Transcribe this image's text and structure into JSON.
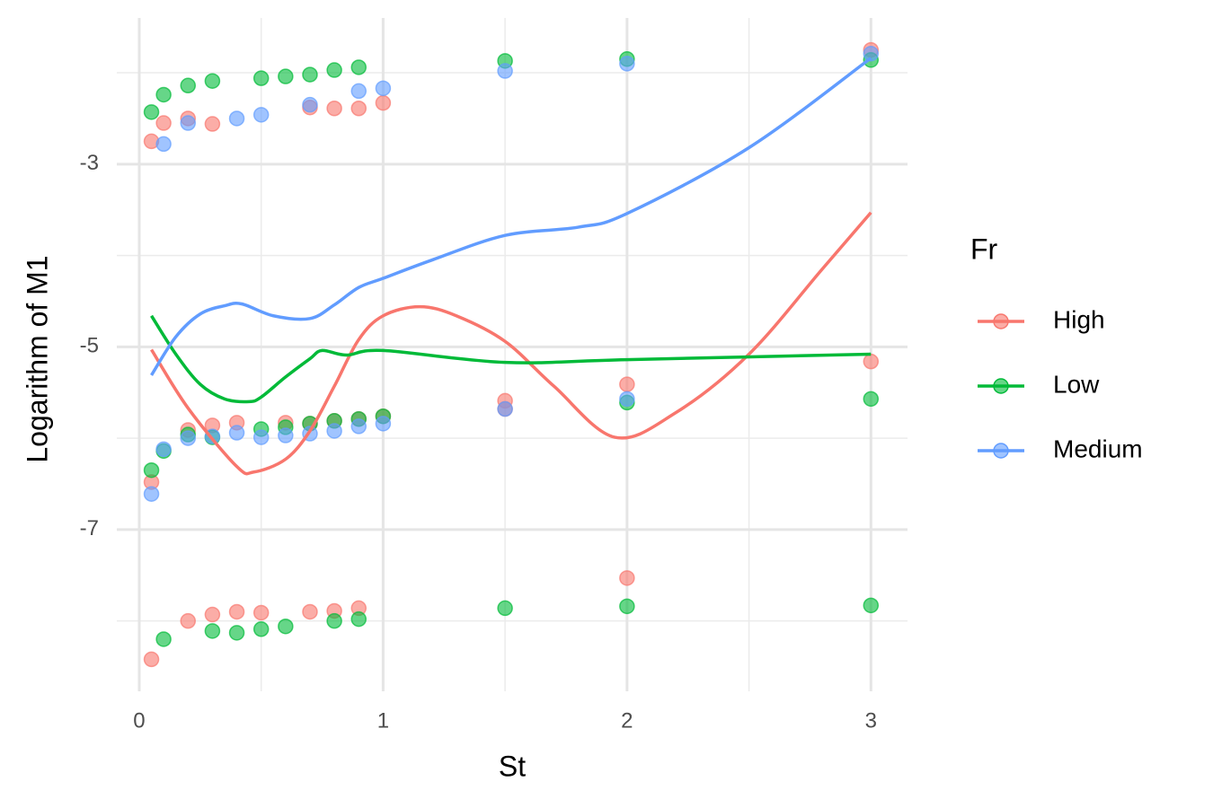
{
  "chart_data": {
    "type": "scatter",
    "x_label": "St",
    "y_label": "Logarithm of M1",
    "legend_title": "Fr",
    "legend": "right",
    "grid": true,
    "xlim": [
      -0.092,
      3.15
    ],
    "ylim": [
      -8.77,
      -1.4
    ],
    "xticks": [
      0,
      1,
      2,
      3
    ],
    "yticks": [
      -7,
      -5,
      -3
    ],
    "xminor": [
      0.5,
      1.5,
      2.5
    ],
    "yminor": [
      -8,
      -6,
      -4,
      -2
    ],
    "series": [
      {
        "name": "High",
        "color": "#F8766D",
        "x": [
          0.05,
          0.05,
          0.05,
          0.1,
          0.2,
          0.2,
          0.2,
          0.3,
          0.3,
          0.3,
          0.4,
          0.4,
          0.5,
          0.6,
          0.7,
          0.7,
          0.7,
          0.8,
          0.8,
          0.8,
          0.9,
          0.9,
          0.9,
          1.0,
          1.0,
          1.5,
          1.5,
          2.0,
          2.0,
          3.0,
          3.0
        ],
        "values": [
          -2.75,
          -6.48,
          -8.42,
          -2.55,
          -2.5,
          -5.91,
          -8.0,
          -2.56,
          -5.86,
          -7.93,
          -5.83,
          -7.9,
          -7.91,
          -5.83,
          -2.38,
          -5.84,
          -7.9,
          -2.39,
          -5.81,
          -7.89,
          -2.39,
          -5.79,
          -7.86,
          -2.33,
          -5.76,
          -5.59,
          -5.68,
          -5.41,
          -7.53,
          -1.75,
          -5.16
        ],
        "smooth_x": [
          0.05,
          0.2,
          0.4,
          0.47,
          0.6,
          0.7,
          0.8,
          0.9,
          1.0,
          1.15,
          1.3,
          1.5,
          1.7,
          1.95,
          2.2,
          2.5,
          2.8,
          3.0
        ],
        "smooth_values": [
          -5.03,
          -5.67,
          -6.31,
          -6.37,
          -6.23,
          -5.92,
          -5.43,
          -4.92,
          -4.66,
          -4.56,
          -4.66,
          -4.94,
          -5.43,
          -5.99,
          -5.72,
          -5.08,
          -4.15,
          -3.53
        ]
      },
      {
        "name": "Low",
        "color": "#00BA38",
        "x": [
          0.05,
          0.05,
          0.1,
          0.1,
          0.1,
          0.2,
          0.2,
          0.3,
          0.3,
          0.3,
          0.4,
          0.5,
          0.5,
          0.5,
          0.6,
          0.6,
          0.6,
          0.7,
          0.7,
          0.8,
          0.8,
          0.8,
          0.9,
          0.9,
          0.9,
          1.0,
          1.5,
          1.5,
          2.0,
          2.0,
          2.0,
          3.0,
          3.0,
          3.0
        ],
        "values": [
          -2.43,
          -6.35,
          -2.24,
          -6.14,
          -8.2,
          -2.14,
          -5.96,
          -2.09,
          -5.99,
          -8.11,
          -8.13,
          -2.06,
          -5.9,
          -8.09,
          -2.04,
          -5.88,
          -8.06,
          -2.02,
          -5.84,
          -1.97,
          -5.81,
          -8.0,
          -1.94,
          -5.79,
          -7.98,
          -5.76,
          -1.87,
          -7.86,
          -1.85,
          -5.61,
          -7.84,
          -1.86,
          -5.57,
          -7.83
        ],
        "smooth_x": [
          0.05,
          0.15,
          0.25,
          0.35,
          0.45,
          0.5,
          0.6,
          0.7,
          0.75,
          0.85,
          1.0,
          1.5,
          2.0,
          3.0
        ],
        "smooth_values": [
          -4.66,
          -5.08,
          -5.41,
          -5.57,
          -5.6,
          -5.55,
          -5.33,
          -5.13,
          -5.04,
          -5.09,
          -5.04,
          -5.17,
          -5.14,
          -5.08
        ]
      },
      {
        "name": "Medium",
        "color": "#619CFF",
        "x": [
          0.05,
          0.1,
          0.1,
          0.2,
          0.2,
          0.3,
          0.4,
          0.4,
          0.5,
          0.5,
          0.6,
          0.7,
          0.7,
          0.8,
          0.9,
          0.9,
          1.0,
          1.0,
          1.5,
          1.5,
          2.0,
          2.0,
          3.0
        ],
        "values": [
          -6.61,
          -2.78,
          -6.12,
          -2.55,
          -6.0,
          -5.98,
          -2.5,
          -5.94,
          -2.46,
          -5.99,
          -5.97,
          -2.35,
          -5.95,
          -5.92,
          -2.2,
          -5.87,
          -2.17,
          -5.84,
          -1.98,
          -5.68,
          -1.9,
          -5.57,
          -1.79
        ],
        "smooth_x": [
          0.05,
          0.15,
          0.25,
          0.35,
          0.42,
          0.55,
          0.7,
          0.8,
          0.9,
          1.0,
          1.2,
          1.5,
          1.8,
          2.0,
          2.5,
          3.0
        ],
        "smooth_values": [
          -5.31,
          -4.89,
          -4.64,
          -4.55,
          -4.53,
          -4.66,
          -4.69,
          -4.54,
          -4.35,
          -4.25,
          -4.05,
          -3.78,
          -3.69,
          -3.54,
          -2.82,
          -1.84
        ]
      }
    ]
  }
}
